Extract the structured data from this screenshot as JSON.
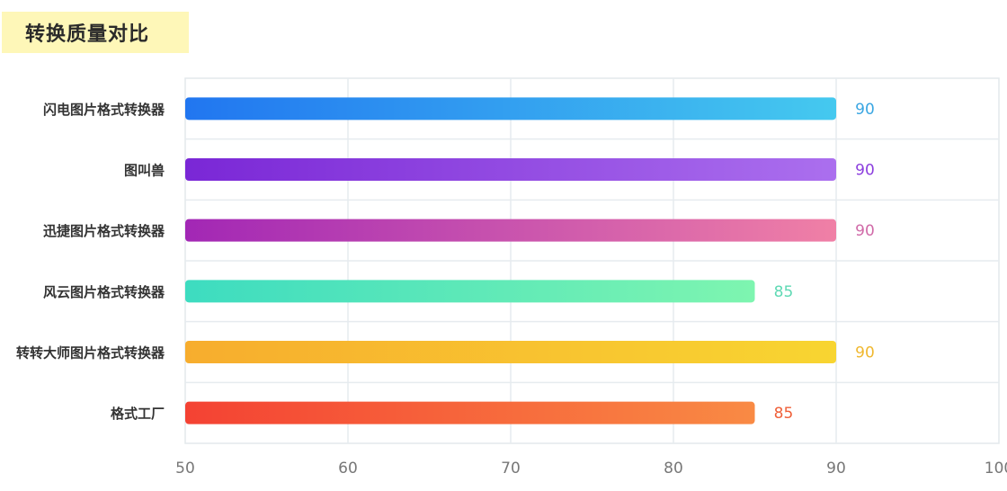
{
  "title": "转换质量对比",
  "chart_data": {
    "type": "bar",
    "orientation": "horizontal",
    "title": "转换质量对比",
    "xlabel": "",
    "ylabel": "",
    "xlim": [
      50,
      100
    ],
    "ticks": [
      50,
      60,
      70,
      80,
      90,
      100
    ],
    "grid": true,
    "categories": [
      "闪电图片格式转换器",
      "图叫兽",
      "迅捷图片格式转换器",
      "风云图片格式转换器",
      "转转大师图片格式转换器",
      "格式工厂"
    ],
    "values": [
      90,
      90,
      90,
      85,
      90,
      85
    ],
    "colors": [
      {
        "start": "#2176f0",
        "end": "#45c9ef",
        "label": "#3aa6e2"
      },
      {
        "start": "#7a27d6",
        "end": "#ab6fee",
        "label": "#8c3fde"
      },
      {
        "start": "#a227b5",
        "end": "#f080a6",
        "label": "#d06aa8"
      },
      {
        "start": "#3ddcc0",
        "end": "#7ef5b0",
        "label": "#5fd9b4"
      },
      {
        "start": "#f7ad2e",
        "end": "#f8d531",
        "label": "#f0b830"
      },
      {
        "start": "#f44233",
        "end": "#f98a44",
        "label": "#ef5f38"
      }
    ]
  }
}
